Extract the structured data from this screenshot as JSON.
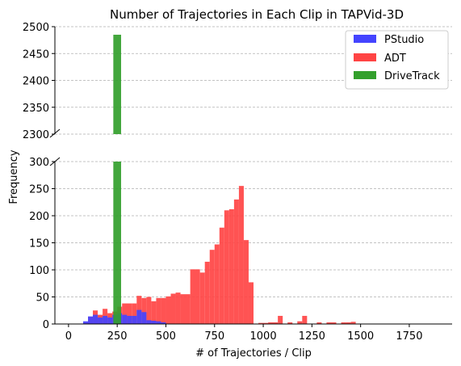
{
  "chart_data": {
    "type": "bar",
    "title": "Number of Trajectories in Each Clip in TAPVid-3D",
    "xlabel": "# of Trajectories / Clip",
    "ylabel": "Frequency",
    "xlim": [
      -70,
      1970
    ],
    "x_ticks": [
      0,
      250,
      500,
      750,
      1000,
      1250,
      1500,
      1750
    ],
    "broken_y_axis": true,
    "upper_ylim": [
      2300,
      2500
    ],
    "upper_y_ticks": [
      2300,
      2350,
      2400,
      2450,
      2500
    ],
    "lower_ylim": [
      0,
      300
    ],
    "lower_y_ticks": [
      0,
      50,
      100,
      150,
      200,
      250,
      300
    ],
    "grid": "y-dashed",
    "legend_position": "top-right",
    "series": [
      {
        "name": "PStudio",
        "color": "#4444ff",
        "bins": [
          [
            75,
            100,
            5
          ],
          [
            100,
            125,
            14
          ],
          [
            125,
            150,
            17
          ],
          [
            150,
            175,
            12
          ],
          [
            175,
            200,
            15
          ],
          [
            200,
            225,
            12
          ],
          [
            225,
            250,
            17
          ],
          [
            250,
            275,
            20
          ],
          [
            275,
            300,
            17
          ],
          [
            300,
            325,
            15
          ],
          [
            325,
            350,
            15
          ],
          [
            350,
            375,
            26
          ],
          [
            375,
            400,
            22
          ],
          [
            400,
            425,
            7
          ],
          [
            425,
            450,
            6
          ],
          [
            450,
            475,
            5
          ],
          [
            475,
            500,
            3
          ]
        ]
      },
      {
        "name": "ADT",
        "color": "#ff4444",
        "bins": [
          [
            75,
            100,
            3
          ],
          [
            100,
            125,
            13
          ],
          [
            125,
            150,
            25
          ],
          [
            150,
            175,
            17
          ],
          [
            175,
            200,
            28
          ],
          [
            200,
            225,
            20
          ],
          [
            225,
            250,
            23
          ],
          [
            250,
            275,
            32
          ],
          [
            275,
            325,
            38
          ],
          [
            325,
            350,
            38
          ],
          [
            350,
            375,
            52
          ],
          [
            375,
            400,
            48
          ],
          [
            400,
            425,
            50
          ],
          [
            425,
            450,
            42
          ],
          [
            450,
            475,
            48
          ],
          [
            475,
            500,
            48
          ],
          [
            500,
            525,
            51
          ],
          [
            525,
            550,
            56
          ],
          [
            550,
            575,
            58
          ],
          [
            575,
            625,
            55
          ],
          [
            625,
            675,
            101
          ],
          [
            675,
            700,
            95
          ],
          [
            700,
            725,
            115
          ],
          [
            725,
            750,
            137
          ],
          [
            750,
            775,
            147
          ],
          [
            775,
            800,
            178
          ],
          [
            800,
            825,
            210
          ],
          [
            825,
            850,
            212
          ],
          [
            850,
            875,
            230
          ],
          [
            875,
            900,
            255
          ],
          [
            900,
            925,
            155
          ],
          [
            925,
            950,
            77
          ],
          [
            975,
            1025,
            2
          ],
          [
            1025,
            1075,
            3
          ],
          [
            1075,
            1100,
            15
          ],
          [
            1125,
            1150,
            3
          ],
          [
            1175,
            1200,
            5
          ],
          [
            1200,
            1225,
            15
          ],
          [
            1275,
            1300,
            3
          ],
          [
            1325,
            1375,
            3
          ],
          [
            1400,
            1425,
            3
          ],
          [
            1425,
            1450,
            3
          ],
          [
            1450,
            1475,
            4
          ]
        ]
      },
      {
        "name": "DriveTrack",
        "color": "#33a02c",
        "bins": [
          [
            230,
            270,
            2485
          ]
        ]
      }
    ]
  }
}
